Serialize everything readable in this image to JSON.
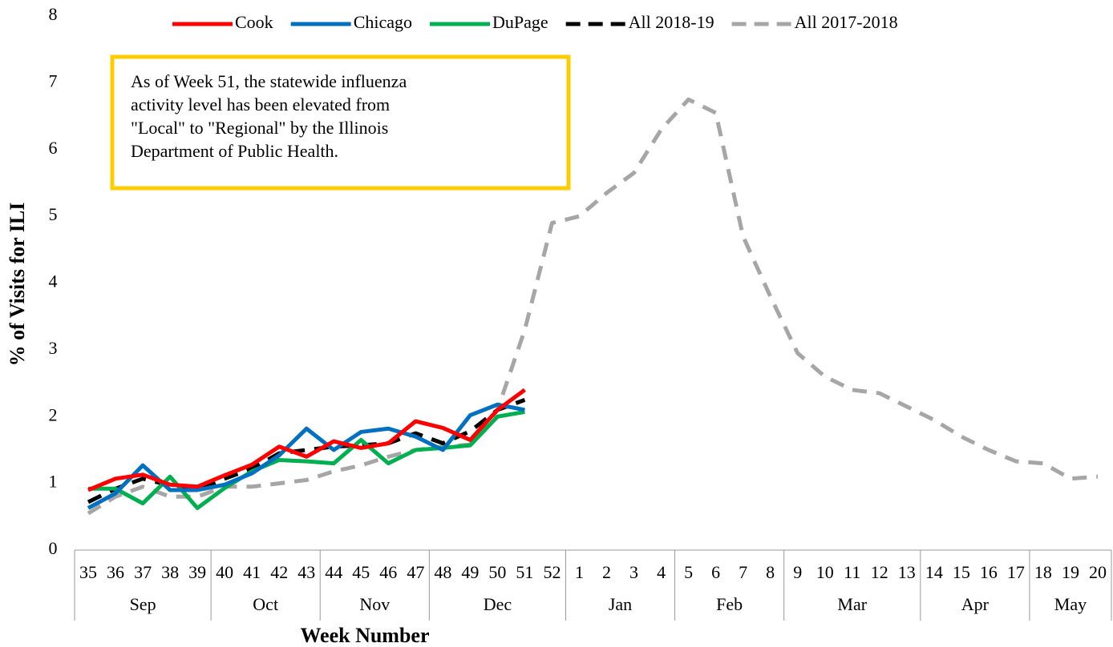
{
  "chart_data": {
    "type": "line",
    "x_label": "Week Number",
    "y_label": "% of Visits for ILI",
    "annotation": [
      "As of Week 51, the statewide influenza",
      "activity level has been elevated from",
      "\"Local\" to \"Regional\" by the Illinois",
      "Department of Public Health."
    ],
    "categories": [
      "35",
      "36",
      "37",
      "38",
      "39",
      "40",
      "41",
      "42",
      "43",
      "44",
      "45",
      "46",
      "47",
      "48",
      "49",
      "50",
      "51",
      "52",
      "1",
      "2",
      "3",
      "4",
      "5",
      "6",
      "7",
      "8",
      "9",
      "10",
      "11",
      "12",
      "13",
      "14",
      "15",
      "16",
      "17",
      "18",
      "19",
      "20"
    ],
    "x_groups": [
      {
        "label": "Sep",
        "count": 5
      },
      {
        "label": "Oct",
        "count": 4
      },
      {
        "label": "Nov",
        "count": 4
      },
      {
        "label": "Dec",
        "count": 5
      },
      {
        "label": "Jan",
        "count": 4
      },
      {
        "label": "Feb",
        "count": 4
      },
      {
        "label": "Mar",
        "count": 5
      },
      {
        "label": "Apr",
        "count": 4
      },
      {
        "label": "May",
        "count": 3
      }
    ],
    "ylim": [
      0,
      8
    ],
    "yticks": [
      0,
      1,
      2,
      3,
      4,
      5,
      6,
      7,
      8
    ],
    "series": [
      {
        "name": "Cook",
        "color": "#ff0000",
        "dash": false,
        "values": [
          0.9,
          1.07,
          1.13,
          0.98,
          0.95,
          1.12,
          1.28,
          1.55,
          1.4,
          1.63,
          1.53,
          1.6,
          1.93,
          1.83,
          1.65,
          2.1,
          2.4,
          null,
          null,
          null,
          null,
          null,
          null,
          null,
          null,
          null,
          null,
          null,
          null,
          null,
          null,
          null,
          null,
          null,
          null,
          null,
          null,
          null
        ]
      },
      {
        "name": "Chicago",
        "color": "#0070c0",
        "dash": false,
        "values": [
          0.63,
          0.85,
          1.27,
          0.9,
          0.9,
          0.98,
          1.15,
          1.42,
          1.82,
          1.5,
          1.77,
          1.82,
          1.7,
          1.5,
          2.02,
          2.18,
          2.1,
          null,
          null,
          null,
          null,
          null,
          null,
          null,
          null,
          null,
          null,
          null,
          null,
          null,
          null,
          null,
          null,
          null,
          null,
          null,
          null,
          null
        ]
      },
      {
        "name": "DuPage",
        "color": "#00b050",
        "dash": false,
        "values": [
          0.92,
          0.92,
          0.7,
          1.1,
          0.63,
          0.93,
          1.18,
          1.35,
          1.33,
          1.3,
          1.65,
          1.3,
          1.5,
          1.53,
          1.57,
          2.0,
          2.07,
          null,
          null,
          null,
          null,
          null,
          null,
          null,
          null,
          null,
          null,
          null,
          null,
          null,
          null,
          null,
          null,
          null,
          null,
          null,
          null,
          null
        ]
      },
      {
        "name": "All 2018-19",
        "color": "#000000",
        "dash": true,
        "values": [
          0.72,
          0.92,
          1.07,
          0.97,
          0.9,
          1.07,
          1.22,
          1.45,
          1.5,
          1.55,
          1.57,
          1.6,
          1.75,
          1.6,
          1.78,
          2.1,
          2.25,
          null,
          null,
          null,
          null,
          null,
          null,
          null,
          null,
          null,
          null,
          null,
          null,
          null,
          null,
          null,
          null,
          null,
          null,
          null,
          null,
          null
        ]
      },
      {
        "name": "All 2017-2018",
        "color": "#a6a6a6",
        "dash": true,
        "values": [
          0.55,
          0.8,
          0.95,
          0.8,
          0.8,
          0.95,
          0.95,
          1.0,
          1.05,
          1.18,
          1.27,
          1.4,
          1.5,
          1.55,
          1.58,
          2.1,
          3.3,
          4.9,
          5.0,
          5.35,
          5.65,
          6.3,
          6.75,
          6.55,
          4.7,
          3.8,
          2.95,
          2.6,
          2.4,
          2.35,
          2.15,
          1.95,
          1.7,
          1.5,
          1.33,
          1.3,
          1.07,
          1.1
        ]
      }
    ]
  }
}
